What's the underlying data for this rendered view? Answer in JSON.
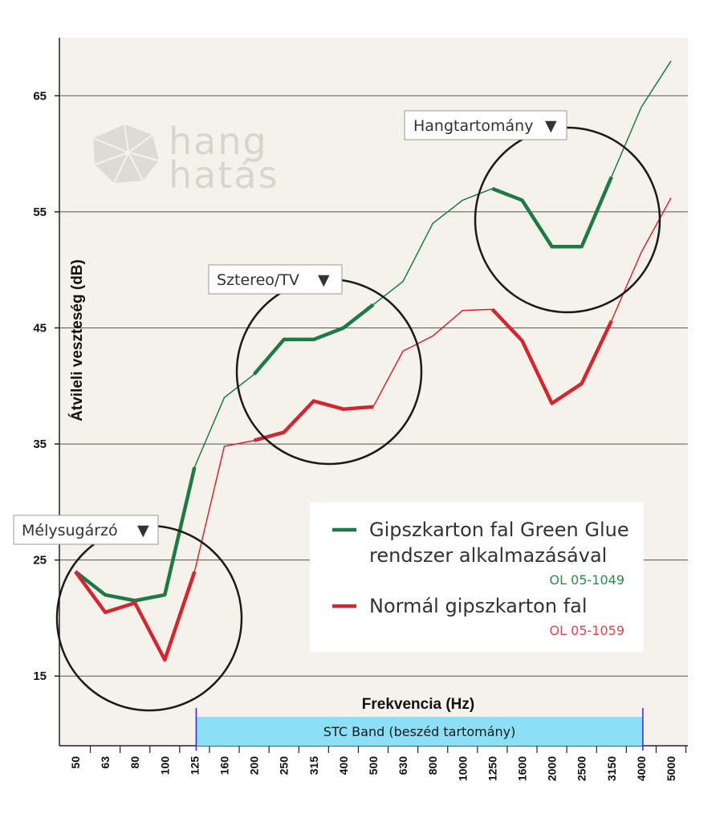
{
  "chart_data": {
    "type": "line",
    "xlabel": "Frekvencia (Hz)",
    "ylabel": "Átvileli veszteség (dB)",
    "categories": [
      "50",
      "63",
      "80",
      "100",
      "125",
      "160",
      "200",
      "250",
      "315",
      "400",
      "500",
      "630",
      "800",
      "1000",
      "1250",
      "1600",
      "2000",
      "2500",
      "3150",
      "4000",
      "5000"
    ],
    "y_ticks": [
      15,
      25,
      35,
      45,
      55,
      65
    ],
    "ylim": [
      9,
      70
    ],
    "grid": true,
    "series": [
      {
        "name": "Gipszkarton fal Green Glue rendszer alkalmazásával",
        "code": "OL 05-1049",
        "color": "#1d7a44",
        "values": [
          24,
          22,
          21.5,
          22,
          33,
          39,
          41,
          44,
          44,
          45,
          47,
          49,
          54,
          56,
          57,
          56,
          52,
          52,
          58,
          64,
          68
        ]
      },
      {
        "name": "Normál gipszkarton fal",
        "code": "OL 05-1059",
        "color": "#d22630",
        "values": [
          24,
          20.5,
          21.3,
          16.4,
          24,
          34.8,
          35.3,
          36,
          38.7,
          38,
          38.2,
          43,
          44.3,
          46.5,
          46.6,
          43.9,
          38.5,
          40.2,
          45.6,
          51.5,
          56.2
        ]
      }
    ],
    "callouts": [
      {
        "label": "Mélysugárzó",
        "marker": "▼"
      },
      {
        "label": "Sztereo/TV",
        "marker": "▼"
      },
      {
        "label": "Hangtartomány",
        "marker": "▼"
      }
    ],
    "band": {
      "label": "STC Band (beszéd tartomány)",
      "from": "125",
      "to": "4000",
      "color": "#8ce0f5"
    },
    "logo": {
      "line1": "hang",
      "line2": "hatás"
    },
    "colors": {
      "plot_background": "#f4f2ea",
      "grid": "#555555"
    }
  }
}
